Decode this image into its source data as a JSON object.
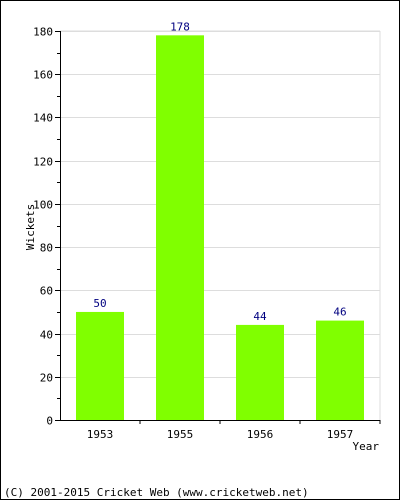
{
  "chart_data": {
    "type": "bar",
    "categories": [
      "1953",
      "1955",
      "1956",
      "1957"
    ],
    "values": [
      50,
      178,
      44,
      46
    ],
    "data_labels": [
      "50",
      "178",
      "44",
      "46"
    ],
    "title": "",
    "xlabel": "Year",
    "ylabel": "Wickets",
    "ylim": [
      0,
      180
    ],
    "yticks": [
      0,
      20,
      40,
      60,
      80,
      100,
      120,
      140,
      160,
      180
    ],
    "grid": true,
    "legend": "none"
  },
  "footer": {
    "copyright": "(C) 2001-2015 Cricket Web (www.cricketweb.net)"
  },
  "colors": {
    "bar": "#80ff00",
    "value_label": "#000080",
    "grid": "#dddddd",
    "axis": "#000000"
  }
}
